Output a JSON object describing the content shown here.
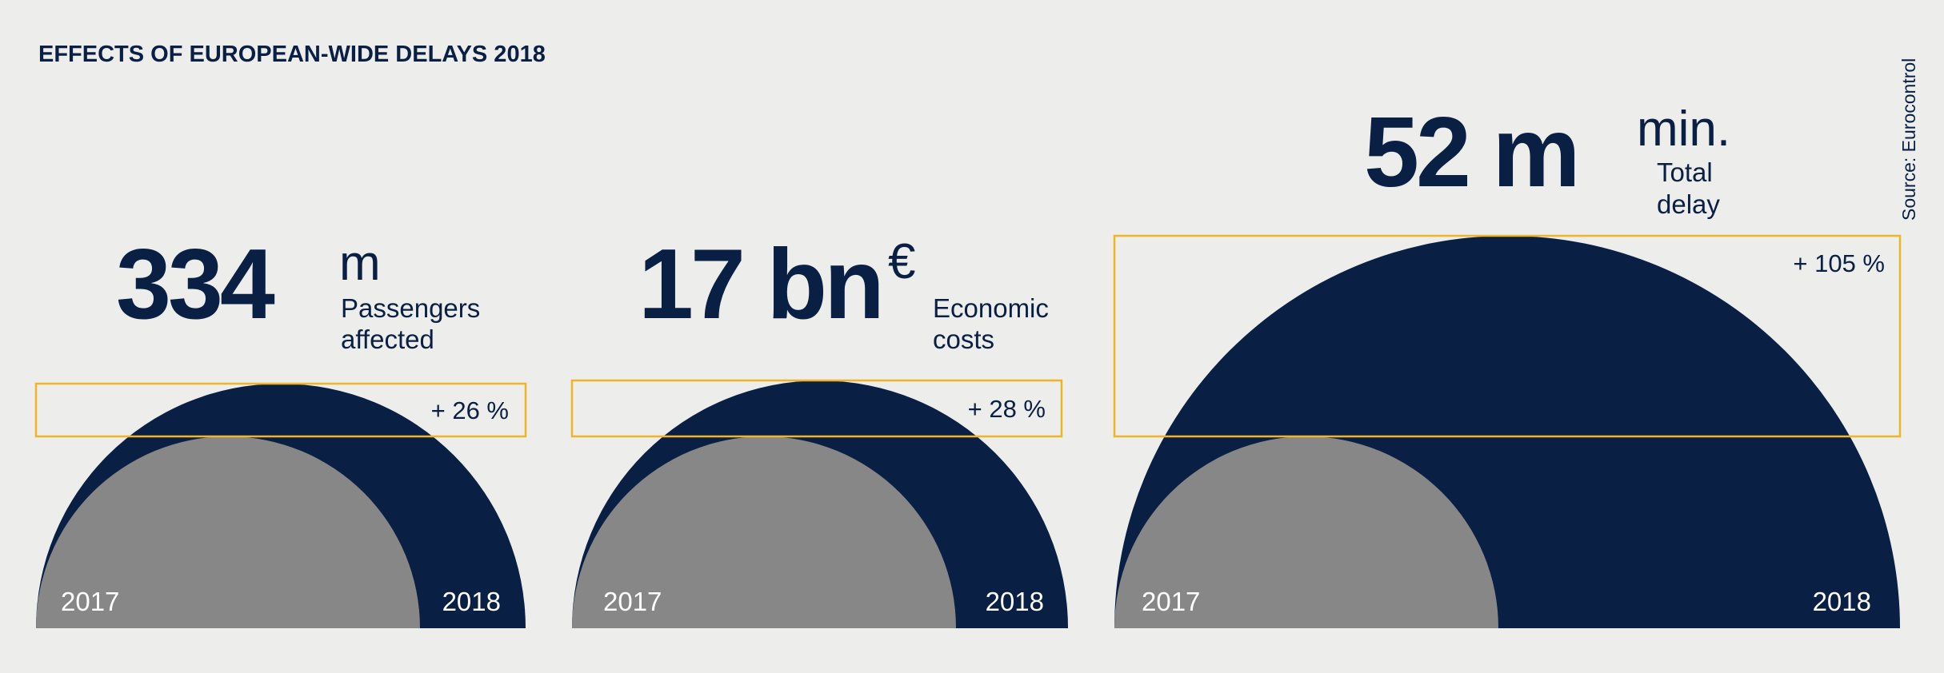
{
  "header": {
    "title": "EFFECTS OF EUROPEAN-WIDE DELAYS 2018",
    "source": "Source: Eurocontrol"
  },
  "panels": [
    {
      "value": "334",
      "unit": "m",
      "label": [
        "Passengers",
        "affected"
      ],
      "change": "+ 26 %",
      "years": [
        "2017",
        "2018"
      ]
    },
    {
      "value": "17 bn",
      "unit": "€",
      "label": [
        "Economic",
        "costs"
      ],
      "change": "+ 28 %",
      "years": [
        "2017",
        "2018"
      ]
    },
    {
      "value": "52 m",
      "unit": "min.",
      "label": [
        "Total",
        "delay"
      ],
      "change": "+ 105 %",
      "years": [
        "2017",
        "2018"
      ]
    }
  ]
}
